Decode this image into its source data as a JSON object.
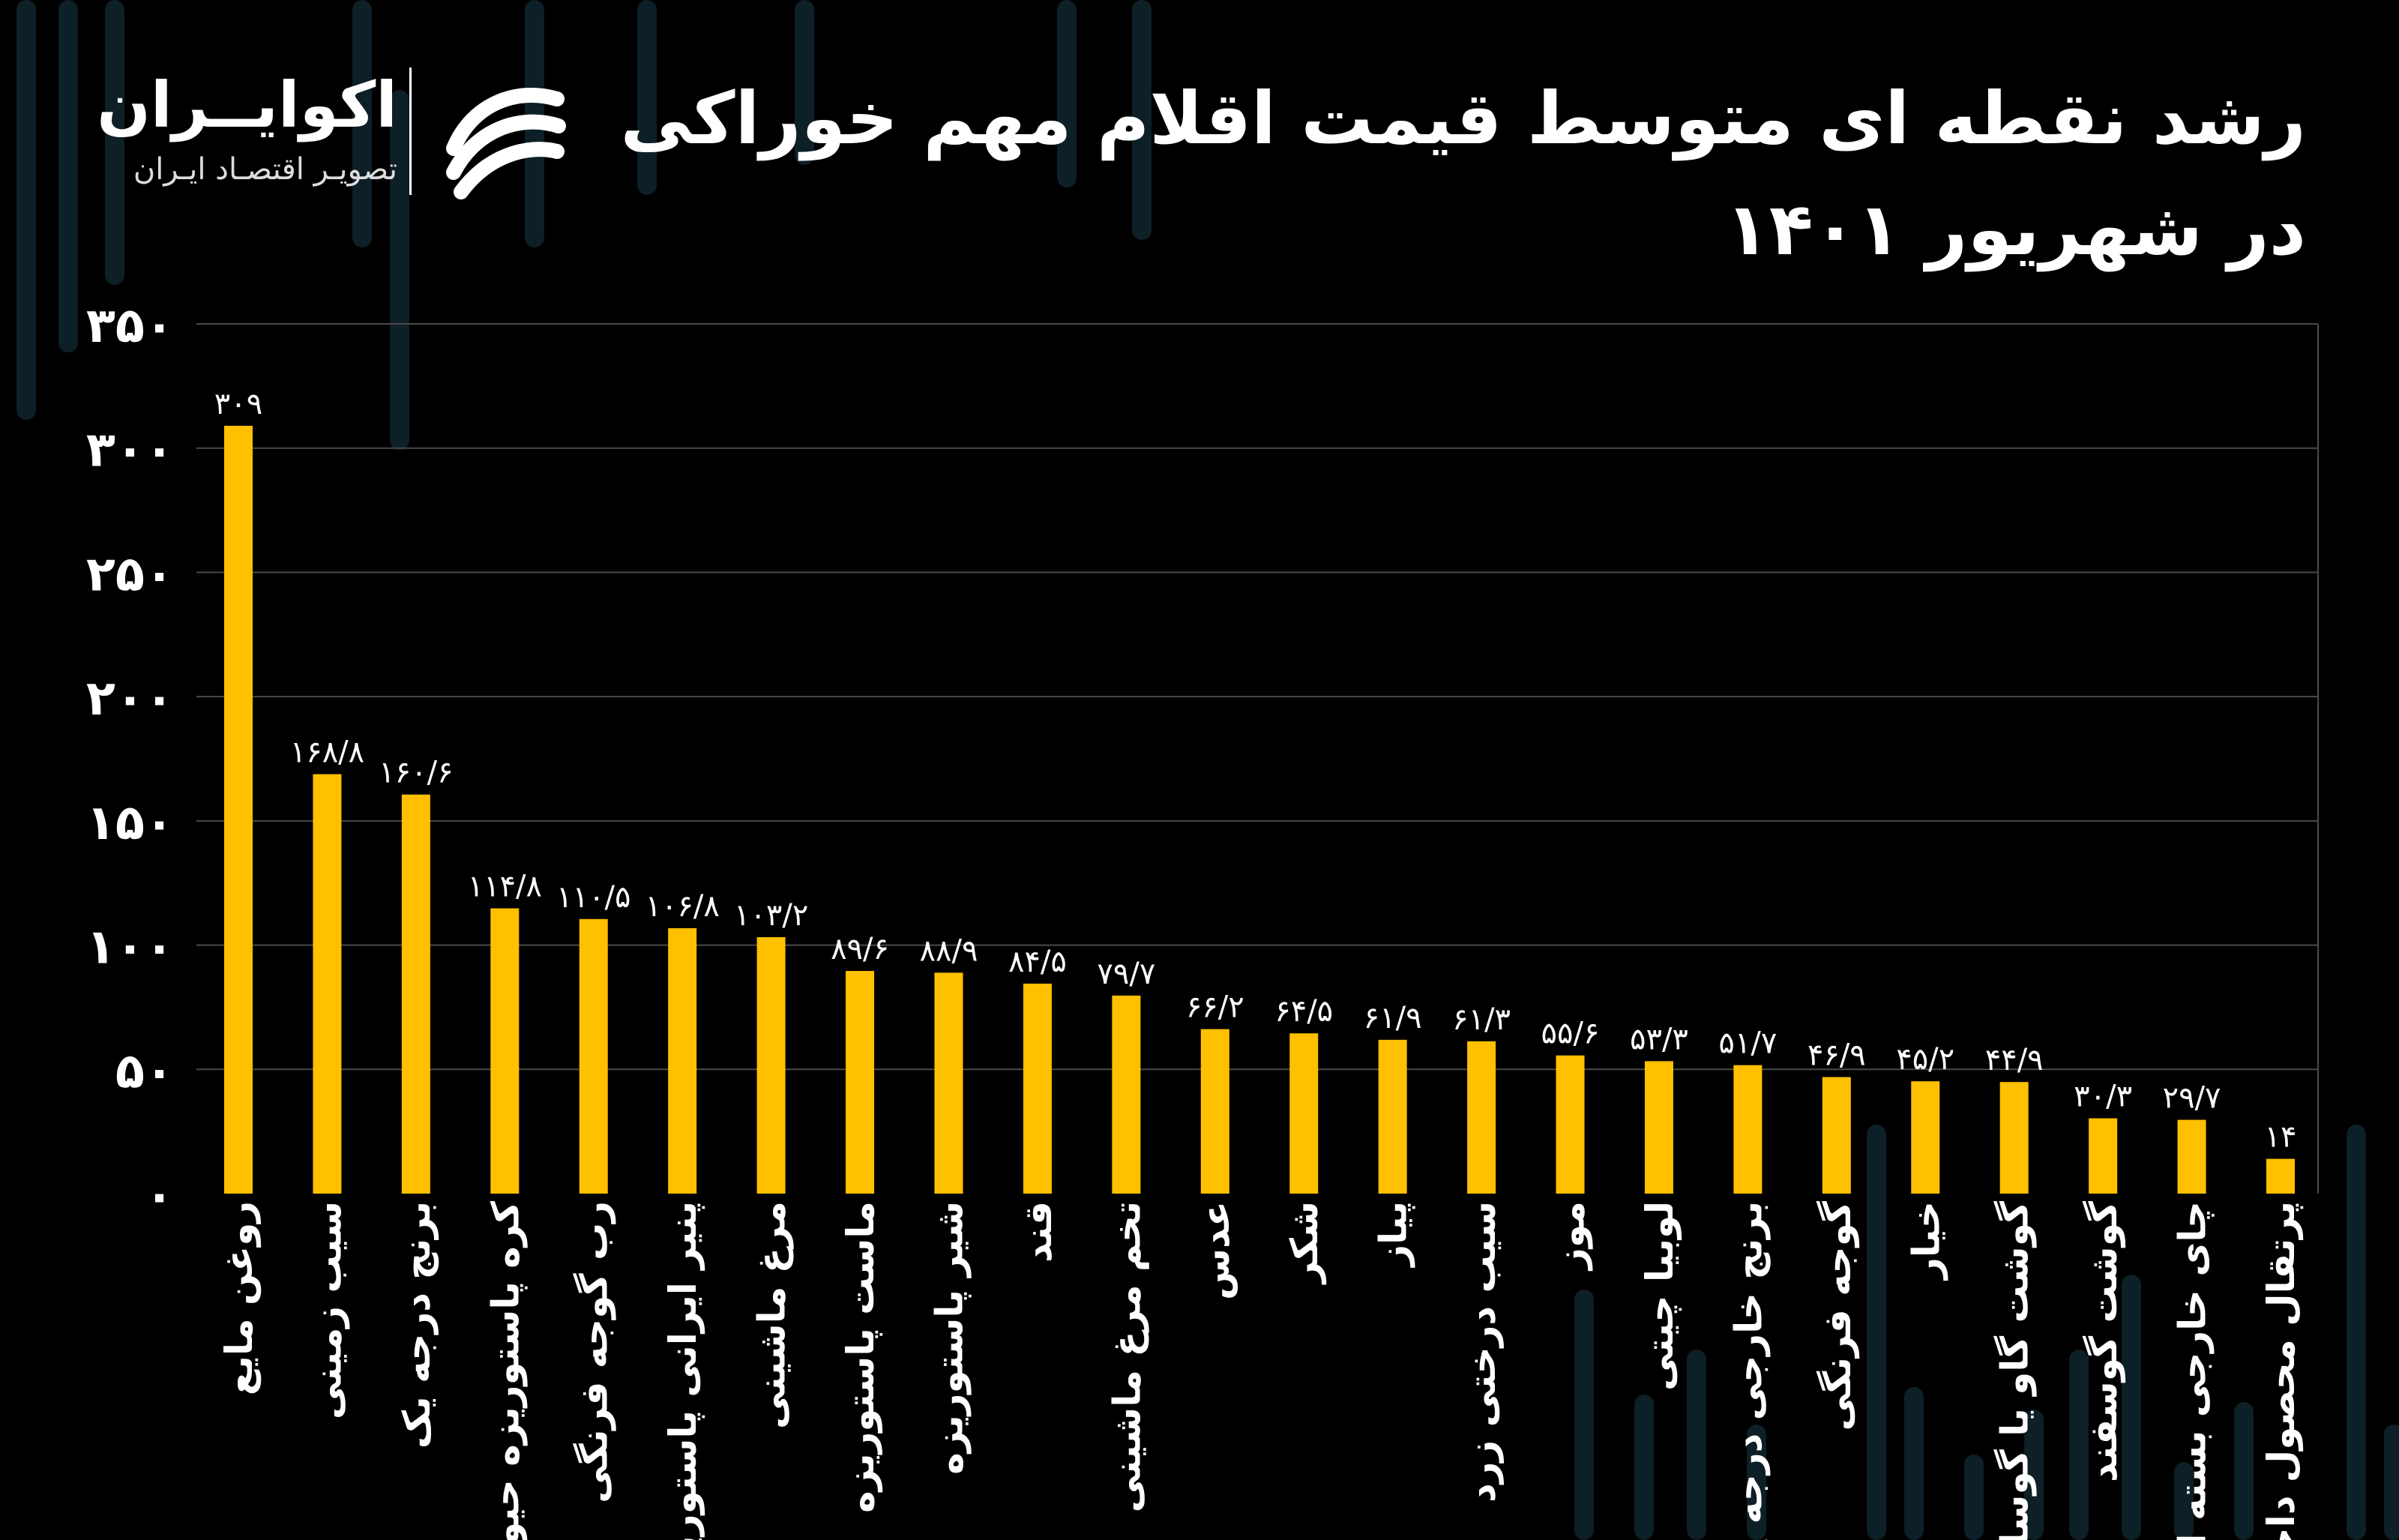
{
  "title": {
    "line1": "رشد نقطه ای متوسط قیمت اقلام مهم خوراکی",
    "line2": "در شهریور ۱۴۰۱"
  },
  "brand": {
    "name": "اکوایــران",
    "tagline": "تصویـر اقتصـاد ایـران",
    "logo_icon": "ecoiran-logo-icon"
  },
  "colors": {
    "background": "#000000",
    "bar": "#FFC000",
    "text": "#FFFFFF",
    "grid": "#4a4a4a",
    "decoration": "#0d1f27"
  },
  "chart_data": {
    "type": "bar",
    "ylim": [
      0,
      350
    ],
    "grid": true,
    "yticks": [
      {
        "value": 0,
        "label": "۰"
      },
      {
        "value": 50,
        "label": "۵۰"
      },
      {
        "value": 100,
        "label": "۱۰۰"
      },
      {
        "value": 150,
        "label": "۱۵۰"
      },
      {
        "value": 200,
        "label": "۲۰۰"
      },
      {
        "value": 250,
        "label": "۲۵۰"
      },
      {
        "value": 300,
        "label": "۳۰۰"
      },
      {
        "value": 350,
        "label": "۳۵۰"
      }
    ],
    "categories": [
      "روغن مایع",
      "سیب زمینی",
      "برنج درجه یک",
      "کره پاستوریزه حیوانی",
      "رب گوجه فرنگی",
      "پنیر ایرانی پاستوریزه",
      "مرغ ماشینی",
      "ماست پاستوریزه",
      "شیر پاستوریزه",
      "قند",
      "تخم مرغ ماشینی",
      "عدس",
      "شکر",
      "پیاز",
      "سیب درختی زرد",
      "موز",
      "لوبیا چیتی",
      "برنج خارجی درجه یک",
      "گوجه فرنگی",
      "خیار",
      "گوشت گاو یا گوساله",
      "گوشت گوسفند",
      "چای خارجی بسته ای",
      "پرتقال محصول داخل"
    ],
    "values": [
      309,
      168.8,
      160.6,
      114.8,
      110.5,
      106.8,
      103.2,
      89.6,
      88.9,
      84.5,
      79.7,
      66.2,
      64.5,
      61.9,
      61.3,
      55.6,
      53.3,
      51.7,
      46.9,
      45.2,
      44.9,
      30.3,
      29.7,
      14
    ],
    "value_labels": [
      "۳۰۹",
      "۱۶۸/۸",
      "۱۶۰/۶",
      "۱۱۴/۸",
      "۱۱۰/۵",
      "۱۰۶/۸",
      "۱۰۳/۲",
      "۸۹/۶",
      "۸۸/۹",
      "۸۴/۵",
      "۷۹/۷",
      "۶۶/۲",
      "۶۴/۵",
      "۶۱/۹",
      "۶۱/۳",
      "۵۵/۶",
      "۵۳/۳",
      "۵۱/۷",
      "۴۶/۹",
      "۴۵/۲",
      "۴۴/۹",
      "۳۰/۳",
      "۲۹/۷",
      "۱۴"
    ]
  }
}
